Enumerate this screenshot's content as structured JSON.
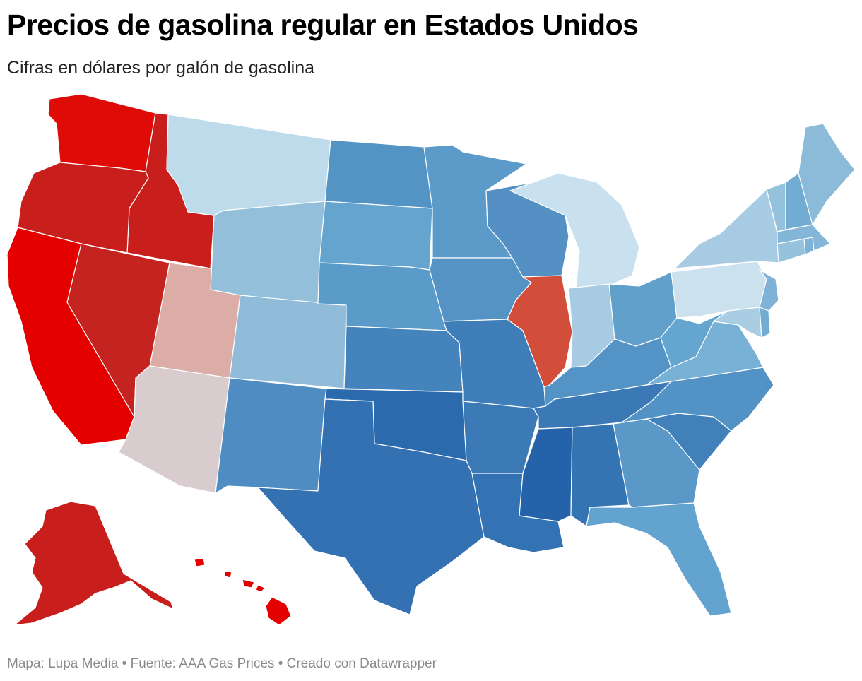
{
  "header": {
    "title": "Precios de gasolina regular en Estados Unidos",
    "subtitle": "Cifras en dólares por galón de gasolina"
  },
  "footer": {
    "text": "Mapa: Lupa Media • Fuente: AAA Gas Prices  • Creado con Datawrapper"
  },
  "map": {
    "type": "choropleth",
    "region": "Estados Unidos",
    "legend": "none",
    "state_colors": {
      "WA": "#df0b07",
      "OR": "#c81f1c",
      "CA": "#e50000",
      "ID": "#c81f1c",
      "NV": "#c52320",
      "UT": "#dcaca6",
      "AZ": "#d9ccce",
      "MT": "#bedbeb",
      "WY": "#93bfdb",
      "CO": "#90bcda",
      "NM": "#4f8cc1",
      "ND": "#5394c5",
      "SD": "#64a4ce",
      "NE": "#5b9bca",
      "KS": "#4583bc",
      "OK": "#2a6aad",
      "TX": "#3371b2",
      "MN": "#5c9bc9",
      "IA": "#5593c5",
      "MO": "#3f7eb9",
      "AR": "#3b7ab7",
      "LA": "#3373b3",
      "WI": "#5490c3",
      "IL": "#d24e3a",
      "MI": "#c9e0ee",
      "IN": "#a6cbe2",
      "OH": "#62a0cc",
      "KY": "#5393c5",
      "TN": "#3a78b6",
      "MS": "#2463a9",
      "AL": "#3574b3",
      "GA": "#5a98c8",
      "FL": "#63a3cf",
      "SC": "#4280ba",
      "NC": "#5392c4",
      "VA": "#77b1d6",
      "WV": "#64a6d0",
      "PA": "#cbe1ee",
      "NY": "#a7cbe2",
      "VT": "#94c1dc",
      "NH": "#72acd3",
      "ME": "#8cbbd9",
      "MA": "#84b6d8",
      "CT": "#96c2dd",
      "RI": "#7db2d6",
      "NJ": "#7fb2d6",
      "DE": "#73acd3",
      "MD": "#a9cde3",
      "AK": "#c81f1c",
      "HI": "#e50000"
    }
  }
}
